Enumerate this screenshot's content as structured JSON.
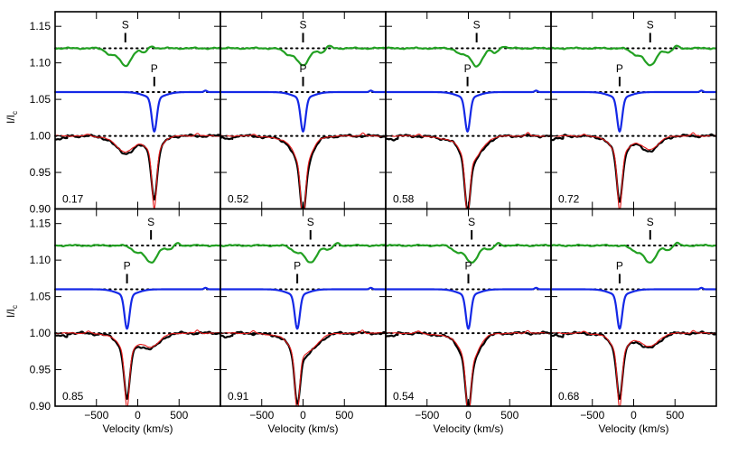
{
  "chart_data": {
    "type": "line",
    "ylabel_main": "I/I",
    "ylabel_sub": "c",
    "xlabel": "Velocity (km/s)",
    "xlim": [
      -1000,
      1000
    ],
    "ylim": [
      0.9,
      1.17
    ],
    "xticks": [
      -500,
      0,
      500
    ],
    "xtick_labels": [
      "−500",
      "0",
      "500"
    ],
    "yticks": [
      0.9,
      0.95,
      1.0,
      1.05,
      1.1,
      1.15
    ],
    "ytick_labels": [
      "0.90",
      "0.95",
      "1.00",
      "1.05",
      "1.10",
      "1.15"
    ],
    "reference_levels": [
      1.0,
      1.06,
      1.12
    ],
    "series_colors": {
      "secondary": "#22a022",
      "primary": "#1428e6",
      "observed": "#000000",
      "model": "#e41a1a"
    },
    "marker_labels": {
      "secondary": "S",
      "primary": "P"
    },
    "panels": [
      {
        "phase": "0.17",
        "v_primary": 200,
        "v_secondary": -150
      },
      {
        "phase": "0.52",
        "v_primary": 0,
        "v_secondary": 0
      },
      {
        "phase": "0.58",
        "v_primary": -10,
        "v_secondary": 100
      },
      {
        "phase": "0.72",
        "v_primary": -170,
        "v_secondary": 200
      },
      {
        "phase": "0.85",
        "v_primary": -130,
        "v_secondary": 160
      },
      {
        "phase": "0.91",
        "v_primary": -70,
        "v_secondary": 90
      },
      {
        "phase": "0.54",
        "v_primary": 0,
        "v_secondary": 40
      },
      {
        "phase": "0.68",
        "v_primary": -170,
        "v_secondary": 200
      }
    ]
  }
}
